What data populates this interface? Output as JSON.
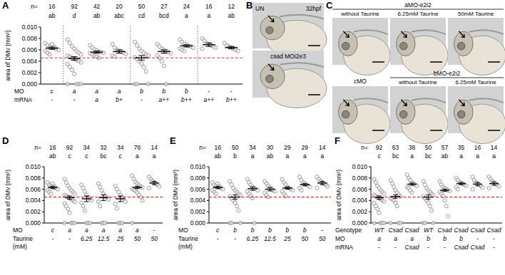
{
  "chart_data": [
    {
      "type": "strip",
      "title": "A",
      "ylabel": "area of DMv (mm²)",
      "n_label": "n=",
      "n": [
        16,
        92,
        42,
        20,
        50,
        27,
        24,
        16,
        12
      ],
      "letters": [
        "ab",
        "d",
        "ab",
        "abc",
        "cd",
        "bcd",
        "a",
        "a",
        "ab"
      ],
      "rows": [
        {
          "label": [
            "MO"
          ],
          "values": [
            "c",
            "a",
            "a",
            "a",
            "b",
            "b",
            "b",
            "-",
            "-"
          ]
        },
        {
          "label": [
            "mRNA"
          ],
          "values": [
            "-",
            "-",
            "a",
            "b+",
            "-",
            "a++",
            "b++",
            "a++",
            "b++"
          ]
        }
      ],
      "values": [
        [
          0.0072,
          0.0068,
          0.0066,
          0.0064,
          0.0063,
          0.0062,
          0.006,
          0.0058,
          0.0055,
          0.0052,
          0.007,
          0.0065
        ],
        [
          0.0078,
          0.0072,
          0.0066,
          0.0062,
          0.0058,
          0.0055,
          0.0052,
          0.005,
          0.0048,
          0.0046,
          0.0044,
          0.0042,
          0.004,
          0.0038,
          0.0035,
          0.003,
          0.0025,
          0.0018,
          0,
          0,
          0,
          0
        ],
        [
          0.0068,
          0.0064,
          0.0061,
          0.0059,
          0.0057,
          0.0056,
          0.0055,
          0.0054,
          0.0052,
          0.005,
          0.0048,
          0.0046
        ],
        [
          0.007,
          0.0064,
          0.006,
          0.0058,
          0.0057,
          0.0055,
          0.0053,
          0.005,
          0.0048
        ],
        [
          0.0074,
          0.0068,
          0.0062,
          0.0058,
          0.0055,
          0.0052,
          0.005,
          0.0047,
          0.0044,
          0.004,
          0.0036,
          0.003,
          0.0022,
          0,
          0,
          0
        ],
        [
          0.007,
          0.0066,
          0.0062,
          0.006,
          0.0058,
          0.0056,
          0.0054,
          0.005,
          0.0046,
          0.004,
          0.0032,
          0
        ],
        [
          0.0078,
          0.0074,
          0.0071,
          0.0069,
          0.0067,
          0.0066,
          0.0064,
          0.0062,
          0.006,
          0.0058
        ],
        [
          0.008,
          0.0076,
          0.0072,
          0.007,
          0.0068,
          0.0066,
          0.0064,
          0.0062
        ],
        [
          0.0072,
          0.0068,
          0.0066,
          0.0064,
          0.0062,
          0.006,
          0.0058
        ]
      ],
      "means": [
        0.0063,
        0.0045,
        0.0056,
        0.0057,
        0.0046,
        0.0057,
        0.0067,
        0.0069,
        0.0064
      ],
      "sem": [
        0.0002,
        0.0003,
        0.0002,
        0.0003,
        0.0004,
        0.0003,
        0.0002,
        0.0003,
        0.0002
      ],
      "separators": [
        1,
        4,
        7
      ],
      "ylim": [
        0,
        0.01
      ],
      "yticks": [
        {
          "value": 0,
          "label": "0.000"
        },
        {
          "value": 0.002,
          "label": "0.002"
        },
        {
          "value": 0.004,
          "label": "0.004"
        },
        {
          "value": 0.006,
          "label": "0.006"
        },
        {
          "value": 0.008,
          "label": "0.008"
        },
        {
          "value": 0.01,
          "label": "0.010"
        }
      ],
      "color": "#8a8a8a",
      "reference_line": {
        "value": 0.0046,
        "color": "#e0302a"
      }
    },
    {
      "type": "strip",
      "title": "D",
      "ylabel": "area of DMv (mm²)",
      "n_label": "n=",
      "n": [
        16,
        92,
        34,
        32,
        34,
        76,
        14
      ],
      "letters": [
        "ab",
        "c",
        "c",
        "bc",
        "c",
        "a",
        "a"
      ],
      "rows": [
        {
          "label": [
            "MO"
          ],
          "values": [
            "c",
            "a",
            "a",
            "a",
            "a",
            "a",
            "-"
          ]
        },
        {
          "label": [
            "Taurine",
            "(mM)"
          ],
          "values": [
            "-",
            "-",
            "6.25",
            "12.5",
            "25",
            "50",
            "50"
          ]
        }
      ],
      "values": [
        [
          0.0072,
          0.0068,
          0.0066,
          0.0064,
          0.0063,
          0.0062,
          0.006,
          0.0058,
          0.0055,
          0.0052,
          0.007,
          0.0065
        ],
        [
          0.0078,
          0.0072,
          0.0066,
          0.0062,
          0.0058,
          0.0055,
          0.0052,
          0.005,
          0.0048,
          0.0046,
          0.0044,
          0.0042,
          0.004,
          0.0038,
          0.0035,
          0.003,
          0.0025,
          0.0018,
          0,
          0,
          0,
          0
        ],
        [
          0.0068,
          0.0062,
          0.0056,
          0.005,
          0.0046,
          0.0043,
          0.004,
          0.0036,
          0.003,
          0.0022,
          0,
          0,
          0
        ],
        [
          0.007,
          0.0064,
          0.0058,
          0.0052,
          0.0048,
          0.0045,
          0.0042,
          0.0038,
          0.003,
          0,
          0,
          0
        ],
        [
          0.0066,
          0.006,
          0.0055,
          0.005,
          0.0046,
          0.0042,
          0.0038,
          0.0034,
          0.0026,
          0,
          0,
          0
        ],
        [
          0.0084,
          0.0078,
          0.0073,
          0.007,
          0.0067,
          0.0065,
          0.0063,
          0.0061,
          0.0059,
          0.0057,
          0.0054,
          0.005,
          0.0046,
          0.004,
          0
        ],
        [
          0.0082,
          0.0078,
          0.0075,
          0.0072,
          0.007,
          0.0068,
          0.0065,
          0.0062
        ]
      ],
      "means": [
        0.0063,
        0.0045,
        0.0043,
        0.0045,
        0.0043,
        0.0063,
        0.0071
      ],
      "sem": [
        0.0002,
        0.0003,
        0.0005,
        0.0005,
        0.0005,
        0.0002,
        0.0003
      ],
      "ylim": [
        0,
        0.01
      ],
      "yticks": [
        {
          "value": 0,
          "label": "0.000"
        },
        {
          "value": 0.002,
          "label": "0.002"
        },
        {
          "value": 0.004,
          "label": "0.004"
        },
        {
          "value": 0.006,
          "label": "0.006"
        },
        {
          "value": 0.008,
          "label": "0.008"
        },
        {
          "value": 0.01,
          "label": "0.010"
        }
      ],
      "color": "#8a8a8a",
      "reference_line": {
        "value": 0.0046,
        "color": "#e0302a"
      }
    },
    {
      "type": "strip",
      "title": "E",
      "ylabel": "area of DMv (mm²)",
      "n_label": "n=",
      "n": [
        16,
        50,
        34,
        30,
        29,
        29,
        14
      ],
      "letters": [
        "ab",
        "b",
        "a",
        "ab",
        "a",
        "a",
        "a"
      ],
      "rows": [
        {
          "label": [
            "MO"
          ],
          "values": [
            "c",
            "b",
            "b",
            "b",
            "b",
            "b",
            "-"
          ]
        },
        {
          "label": [
            "Taurine",
            "(mM)"
          ],
          "values": [
            "-",
            "-",
            "6.25",
            "12.5",
            "25",
            "50",
            "50"
          ]
        }
      ],
      "values": [
        [
          0.0072,
          0.0068,
          0.0066,
          0.0064,
          0.0063,
          0.0062,
          0.006,
          0.0058,
          0.0055,
          0.0052,
          0.007,
          0.0065
        ],
        [
          0.0074,
          0.0068,
          0.0062,
          0.0058,
          0.0055,
          0.0052,
          0.005,
          0.0047,
          0.0044,
          0.004,
          0.0036,
          0.003,
          0.0022,
          0,
          0,
          0
        ],
        [
          0.0078,
          0.0072,
          0.0068,
          0.0064,
          0.0062,
          0.006,
          0.0058,
          0.0056,
          0.0052,
          0.0048,
          0.0044,
          0
        ],
        [
          0.0074,
          0.007,
          0.0066,
          0.0062,
          0.006,
          0.0058,
          0.0056,
          0.0054,
          0.005,
          0.0046
        ],
        [
          0.0078,
          0.0072,
          0.0068,
          0.0064,
          0.0062,
          0.006,
          0.0058,
          0.0056,
          0.0052,
          0.0048
        ],
        [
          0.0082,
          0.0076,
          0.0072,
          0.007,
          0.0068,
          0.0066,
          0.0064,
          0.0062,
          0.0058
        ],
        [
          0.0082,
          0.0078,
          0.0075,
          0.0072,
          0.007,
          0.0068,
          0.0065,
          0.0062
        ]
      ],
      "means": [
        0.0063,
        0.0046,
        0.0061,
        0.006,
        0.0062,
        0.0068,
        0.0071
      ],
      "sem": [
        0.0002,
        0.0004,
        0.0003,
        0.0003,
        0.0002,
        0.0002,
        0.0003
      ],
      "ylim": [
        0,
        0.01
      ],
      "yticks": [
        {
          "value": 0,
          "label": "0.000"
        },
        {
          "value": 0.002,
          "label": "0.002"
        },
        {
          "value": 0.004,
          "label": "0.004"
        },
        {
          "value": 0.006,
          "label": "0.006"
        },
        {
          "value": 0.008,
          "label": "0.008"
        },
        {
          "value": 0.01,
          "label": "0.010"
        }
      ],
      "color": "#8a8a8a",
      "reference_line": {
        "value": 0.0046,
        "color": "#e0302a"
      }
    },
    {
      "type": "strip",
      "title": "F",
      "ylabel": "area of DMv (mm²)",
      "n_label": "n=",
      "n": [
        92,
        63,
        38,
        50,
        57,
        35,
        16,
        14
      ],
      "letters": [
        "c",
        "bc",
        "a",
        "bc",
        "ab",
        "a",
        "a",
        "a"
      ],
      "rows": [
        {
          "label": [
            "Genotype"
          ],
          "values": [
            "WT",
            "Csad",
            "Csad",
            "WT",
            "Csad",
            "Csad",
            "Csad",
            "Csad"
          ]
        },
        {
          "label": [
            "MO"
          ],
          "values": [
            "a",
            "a",
            "a",
            "b",
            "b",
            "b",
            "-",
            "-"
          ]
        },
        {
          "label": [
            "mRNA"
          ],
          "values": [
            "-",
            "-",
            "Csad",
            "-",
            "-",
            "Csad",
            "Csad",
            "-"
          ]
        }
      ],
      "values": [
        [
          0.0078,
          0.0072,
          0.0066,
          0.0062,
          0.0058,
          0.0055,
          0.0052,
          0.005,
          0.0048,
          0.0046,
          0.0044,
          0.0042,
          0.004,
          0.0038,
          0.0035,
          0.003,
          0.0025,
          0.0018,
          0,
          0,
          0,
          0
        ],
        [
          0.0076,
          0.007,
          0.0064,
          0.0058,
          0.0054,
          0.005,
          0.0047,
          0.0044,
          0.0042,
          0.004,
          0.0036,
          0.003,
          0,
          0,
          0
        ],
        [
          0.0086,
          0.008,
          0.0076,
          0.0072,
          0.007,
          0.0068,
          0.0066,
          0.0064,
          0.0062,
          0.0058,
          0.0054
        ],
        [
          0.0074,
          0.0068,
          0.0062,
          0.0058,
          0.0055,
          0.0052,
          0.005,
          0.0047,
          0.0044,
          0.004,
          0.0036,
          0.003,
          0.0022,
          0,
          0,
          0
        ],
        [
          0.0074,
          0.0068,
          0.0064,
          0.0062,
          0.006,
          0.0058,
          0.0057,
          0.0055,
          0.0052,
          0.0048,
          0.004,
          0.003,
          0.0012
        ],
        [
          0.008,
          0.0076,
          0.0073,
          0.0071,
          0.007,
          0.0068,
          0.0066,
          0.0064,
          0.006
        ],
        [
          0.0082,
          0.0076,
          0.0072,
          0.007,
          0.0068,
          0.0066,
          0.0063,
          0.006
        ],
        [
          0.0082,
          0.0078,
          0.0074,
          0.0072,
          0.007,
          0.0068,
          0.0065,
          0.0062
        ]
      ],
      "means": [
        0.0045,
        0.0047,
        0.0069,
        0.0046,
        0.0058,
        0.007,
        0.0069,
        0.007
      ],
      "sem": [
        0.0003,
        0.0003,
        0.0002,
        0.0004,
        0.0002,
        0.0002,
        0.0003,
        0.0003
      ],
      "ylim": [
        0,
        0.01
      ],
      "yticks": [
        {
          "value": 0,
          "label": "0.000"
        },
        {
          "value": 0.002,
          "label": "0.002"
        },
        {
          "value": 0.004,
          "label": "0.004"
        },
        {
          "value": 0.006,
          "label": "0.006"
        },
        {
          "value": 0.008,
          "label": "0.008"
        },
        {
          "value": 0.01,
          "label": "0.010"
        }
      ],
      "color": "#8a8a8a",
      "reference_line": {
        "value": 0.0046,
        "color": "#e0302a"
      }
    }
  ],
  "image_panels": [
    {
      "title": "B",
      "frames": [
        {
          "labels": [
            "UN",
            "32hpf"
          ]
        },
        {
          "labels": [
            "csad MOi2e3"
          ]
        }
      ]
    },
    {
      "title": "C",
      "rows": [
        {
          "groups": [
            {
              "header": "aMO-e2i2",
              "frames": [
                "without Taurine",
                "6.25mM Taurine",
                "50mM Taurine"
              ]
            }
          ]
        },
        {
          "groups": [
            {
              "header": "cMO",
              "frames": [
                null
              ]
            },
            {
              "header": "bMO-e2i2",
              "frames": [
                "without Taurine",
                "6.25mM Taurine"
              ]
            }
          ]
        }
      ]
    }
  ]
}
